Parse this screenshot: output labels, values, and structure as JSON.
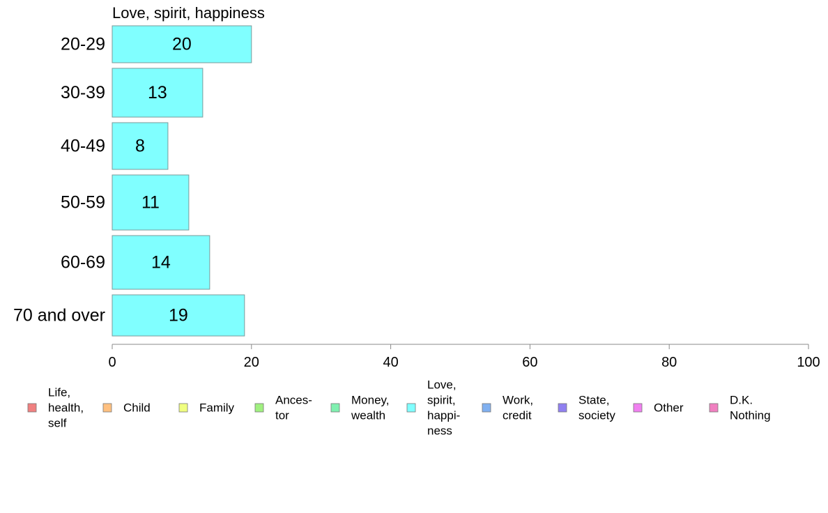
{
  "chart_data": {
    "type": "bar",
    "orientation": "horizontal",
    "title": "Love, spirit, happiness",
    "categories": [
      "20-29",
      "30-39",
      "40-49",
      "50-59",
      "60-69",
      "70 and over"
    ],
    "values": [
      20,
      13,
      8,
      11,
      14,
      19
    ],
    "bar_color": "#80ffff",
    "xlim": [
      0,
      100
    ],
    "xticks": [
      0,
      20,
      40,
      60,
      80,
      100
    ],
    "grid": false,
    "legend_position": "bottom",
    "legend": [
      {
        "lines": [
          "Life,",
          "health,",
          "self"
        ],
        "color": "#f08080"
      },
      {
        "lines": [
          "Child"
        ],
        "color": "#ffc080"
      },
      {
        "lines": [
          "Family"
        ],
        "color": "#f0ff80"
      },
      {
        "lines": [
          "Ances-",
          "tor"
        ],
        "color": "#a0f080"
      },
      {
        "lines": [
          "Money,",
          "wealth"
        ],
        "color": "#80f0b0"
      },
      {
        "lines": [
          "Love,",
          "spirit,",
          "happi-",
          "ness"
        ],
        "color": "#80ffff"
      },
      {
        "lines": [
          "Work,",
          "credit"
        ],
        "color": "#80b0f0"
      },
      {
        "lines": [
          "State,",
          "society"
        ],
        "color": "#9080f0"
      },
      {
        "lines": [
          "Other"
        ],
        "color": "#f080f0"
      },
      {
        "lines": [
          "D.K.",
          "Nothing"
        ],
        "color": "#f080c0"
      }
    ]
  }
}
